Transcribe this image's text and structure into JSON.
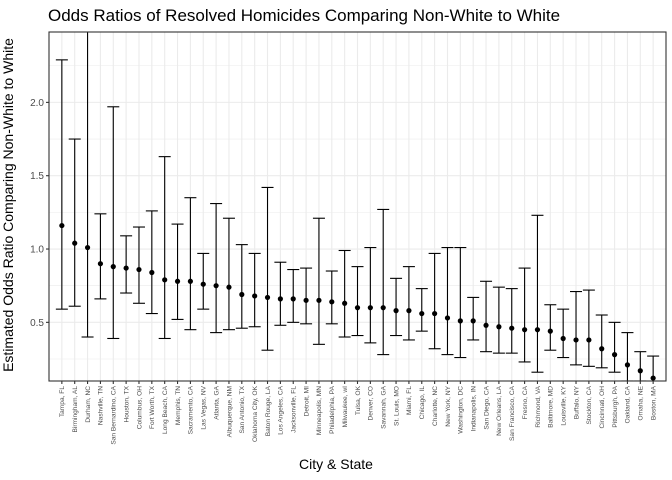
{
  "chart_data": {
    "type": "scatter",
    "title": "Odds Ratios of Resolved Homicides Comparing Non-White to White",
    "xlabel": "City & State",
    "ylabel": "Estimated Odds Ratio Comparing Non-White to White",
    "ylim": [
      0.1,
      2.48
    ],
    "yticks": [
      0.5,
      1.0,
      1.5,
      2.0
    ],
    "ytick_labels": [
      "0.5",
      "1.0",
      "1.5",
      "2.0"
    ],
    "grid": true,
    "legend": "none",
    "color": "#000000",
    "series": [
      {
        "points": [
          {
            "x": "Tampa, FL",
            "or": 1.16,
            "lo": 0.59,
            "hi": 2.29
          },
          {
            "x": "Birmingham, AL",
            "or": 1.04,
            "lo": 0.61,
            "hi": 1.75
          },
          {
            "x": "Durham, NC",
            "or": 1.01,
            "lo": 0.4,
            "hi": 2.55
          },
          {
            "x": "Nashville, TN",
            "or": 0.9,
            "lo": 0.66,
            "hi": 1.24
          },
          {
            "x": "San Bernardino, CA",
            "or": 0.88,
            "lo": 0.39,
            "hi": 1.97
          },
          {
            "x": "Houston, TX",
            "or": 0.87,
            "lo": 0.7,
            "hi": 1.09
          },
          {
            "x": "Columbus, OH",
            "or": 0.86,
            "lo": 0.63,
            "hi": 1.15
          },
          {
            "x": "Fort Worth, TX",
            "or": 0.84,
            "lo": 0.56,
            "hi": 1.26
          },
          {
            "x": "Long Beach, CA",
            "or": 0.79,
            "lo": 0.39,
            "hi": 1.63
          },
          {
            "x": "Memphis, TN",
            "or": 0.78,
            "lo": 0.52,
            "hi": 1.17
          },
          {
            "x": "Sacramento, CA",
            "or": 0.78,
            "lo": 0.45,
            "hi": 1.35
          },
          {
            "x": "Las Vegas, NV",
            "or": 0.76,
            "lo": 0.59,
            "hi": 0.97
          },
          {
            "x": "Atlanta, GA",
            "or": 0.75,
            "lo": 0.43,
            "hi": 1.31
          },
          {
            "x": "Albuquerque, NM",
            "or": 0.74,
            "lo": 0.45,
            "hi": 1.21
          },
          {
            "x": "San Antonio, TX",
            "or": 0.69,
            "lo": 0.46,
            "hi": 1.03
          },
          {
            "x": "Oklahoma City, OK",
            "or": 0.68,
            "lo": 0.47,
            "hi": 0.97
          },
          {
            "x": "Baton Rouge, LA",
            "or": 0.67,
            "lo": 0.31,
            "hi": 1.42
          },
          {
            "x": "Los Angeles, CA",
            "or": 0.66,
            "lo": 0.48,
            "hi": 0.91
          },
          {
            "x": "Jacksonville, FL",
            "or": 0.66,
            "lo": 0.5,
            "hi": 0.86
          },
          {
            "x": "Detroit, MI",
            "or": 0.65,
            "lo": 0.49,
            "hi": 0.87
          },
          {
            "x": "Minneapolis, MN",
            "or": 0.65,
            "lo": 0.35,
            "hi": 1.21
          },
          {
            "x": "Philadelphia, PA",
            "or": 0.64,
            "lo": 0.49,
            "hi": 0.85
          },
          {
            "x": "Milwaukee, wI",
            "or": 0.63,
            "lo": 0.4,
            "hi": 0.99
          },
          {
            "x": "Tulsa, OK",
            "or": 0.6,
            "lo": 0.41,
            "hi": 0.88
          },
          {
            "x": "Denver, CO",
            "or": 0.6,
            "lo": 0.36,
            "hi": 1.01
          },
          {
            "x": "Savannah, GA",
            "or": 0.6,
            "lo": 0.28,
            "hi": 1.27
          },
          {
            "x": "St. Louis, MO",
            "or": 0.58,
            "lo": 0.41,
            "hi": 0.8
          },
          {
            "x": "Miami, FL",
            "or": 0.58,
            "lo": 0.38,
            "hi": 0.88
          },
          {
            "x": "Chicago, IL",
            "or": 0.56,
            "lo": 0.44,
            "hi": 0.73
          },
          {
            "x": "Charlotte, NC",
            "or": 0.56,
            "lo": 0.32,
            "hi": 0.97
          },
          {
            "x": "New York, NY",
            "or": 0.53,
            "lo": 0.28,
            "hi": 1.01
          },
          {
            "x": "Washington, DC",
            "or": 0.51,
            "lo": 0.26,
            "hi": 1.01
          },
          {
            "x": "Indianapolis, IN",
            "or": 0.51,
            "lo": 0.38,
            "hi": 0.67
          },
          {
            "x": "San Diego, CA",
            "or": 0.48,
            "lo": 0.3,
            "hi": 0.78
          },
          {
            "x": "New Orleans, LA",
            "or": 0.47,
            "lo": 0.29,
            "hi": 0.74
          },
          {
            "x": "San Francisco, CA",
            "or": 0.46,
            "lo": 0.29,
            "hi": 0.73
          },
          {
            "x": "Fresno, CA",
            "or": 0.45,
            "lo": 0.23,
            "hi": 0.87
          },
          {
            "x": "Richmond, VA",
            "or": 0.45,
            "lo": 0.16,
            "hi": 1.23
          },
          {
            "x": "Baltimore, MD",
            "or": 0.44,
            "lo": 0.31,
            "hi": 0.62
          },
          {
            "x": "Louisville, KY",
            "or": 0.39,
            "lo": 0.26,
            "hi": 0.59
          },
          {
            "x": "Buffalo, NY",
            "or": 0.38,
            "lo": 0.21,
            "hi": 0.71
          },
          {
            "x": "Stockton, CA",
            "or": 0.38,
            "lo": 0.2,
            "hi": 0.72
          },
          {
            "x": "Cincinnati, OH",
            "or": 0.32,
            "lo": 0.19,
            "hi": 0.55
          },
          {
            "x": "Pittsburgh, PA",
            "or": 0.28,
            "lo": 0.16,
            "hi": 0.5
          },
          {
            "x": "Oakland, CA",
            "or": 0.21,
            "lo": 0.1,
            "hi": 0.43
          },
          {
            "x": "Omaha, NE",
            "or": 0.17,
            "lo": 0.1,
            "hi": 0.3
          },
          {
            "x": "Boston, MA",
            "or": 0.12,
            "lo": 0.05,
            "hi": 0.27
          }
        ]
      }
    ]
  }
}
